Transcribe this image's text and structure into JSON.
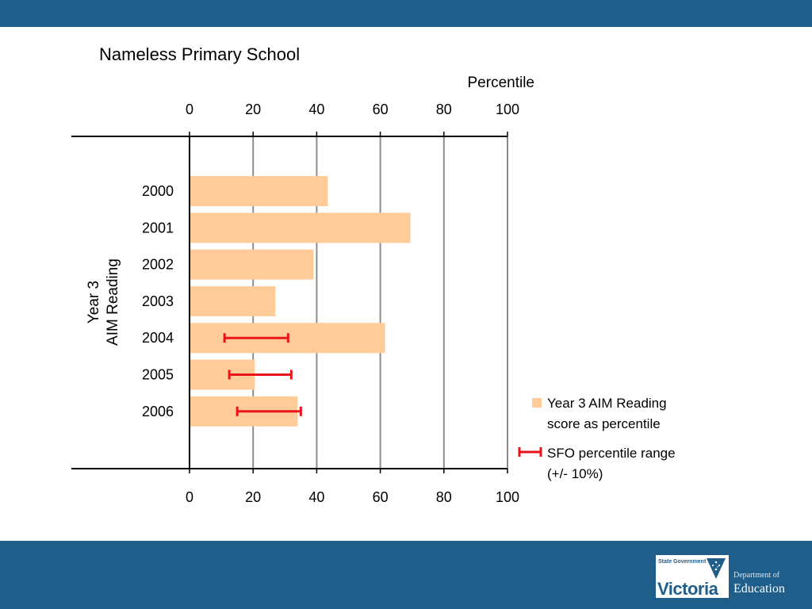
{
  "header": {
    "title": "Nameless Primary School"
  },
  "chart_data": {
    "type": "bar",
    "orientation": "horizontal",
    "title": "Nameless Primary School",
    "xlabel": "Percentile",
    "ylabel": "Year 3\nAIM Reading",
    "xlim": [
      0,
      100
    ],
    "xticks": [
      0,
      20,
      40,
      60,
      80,
      100
    ],
    "categories": [
      "2000",
      "2001",
      "2002",
      "2003",
      "2004",
      "2005",
      "2006"
    ],
    "series": [
      {
        "name": "Year 3 AIM Reading score as percentile",
        "values": [
          43.5,
          69.5,
          39,
          27,
          61.5,
          20.5,
          34
        ],
        "color": "#ffcc99"
      }
    ],
    "error_ranges": {
      "name": "SFO percentile range (+/- 10%)",
      "color": "#e8141a",
      "ranges": [
        null,
        null,
        null,
        null,
        [
          11,
          31
        ],
        [
          12.5,
          32
        ],
        [
          15,
          35
        ]
      ]
    },
    "legend": {
      "placement": "right",
      "items": [
        {
          "line1": "Year 3 AIM Reading",
          "line2": "score as percentile"
        },
        {
          "line1": "SFO percentile range",
          "line2": "(+/- 10%)"
        }
      ]
    },
    "grid": true
  },
  "footer": {
    "logo_state": "State Government",
    "logo_name": "Victoria",
    "logo_dept": "Department of",
    "logo_edu": "Education"
  },
  "colors": {
    "band": "#1f5d8a",
    "bar": "#ffcc99",
    "range": "#e8141a"
  }
}
